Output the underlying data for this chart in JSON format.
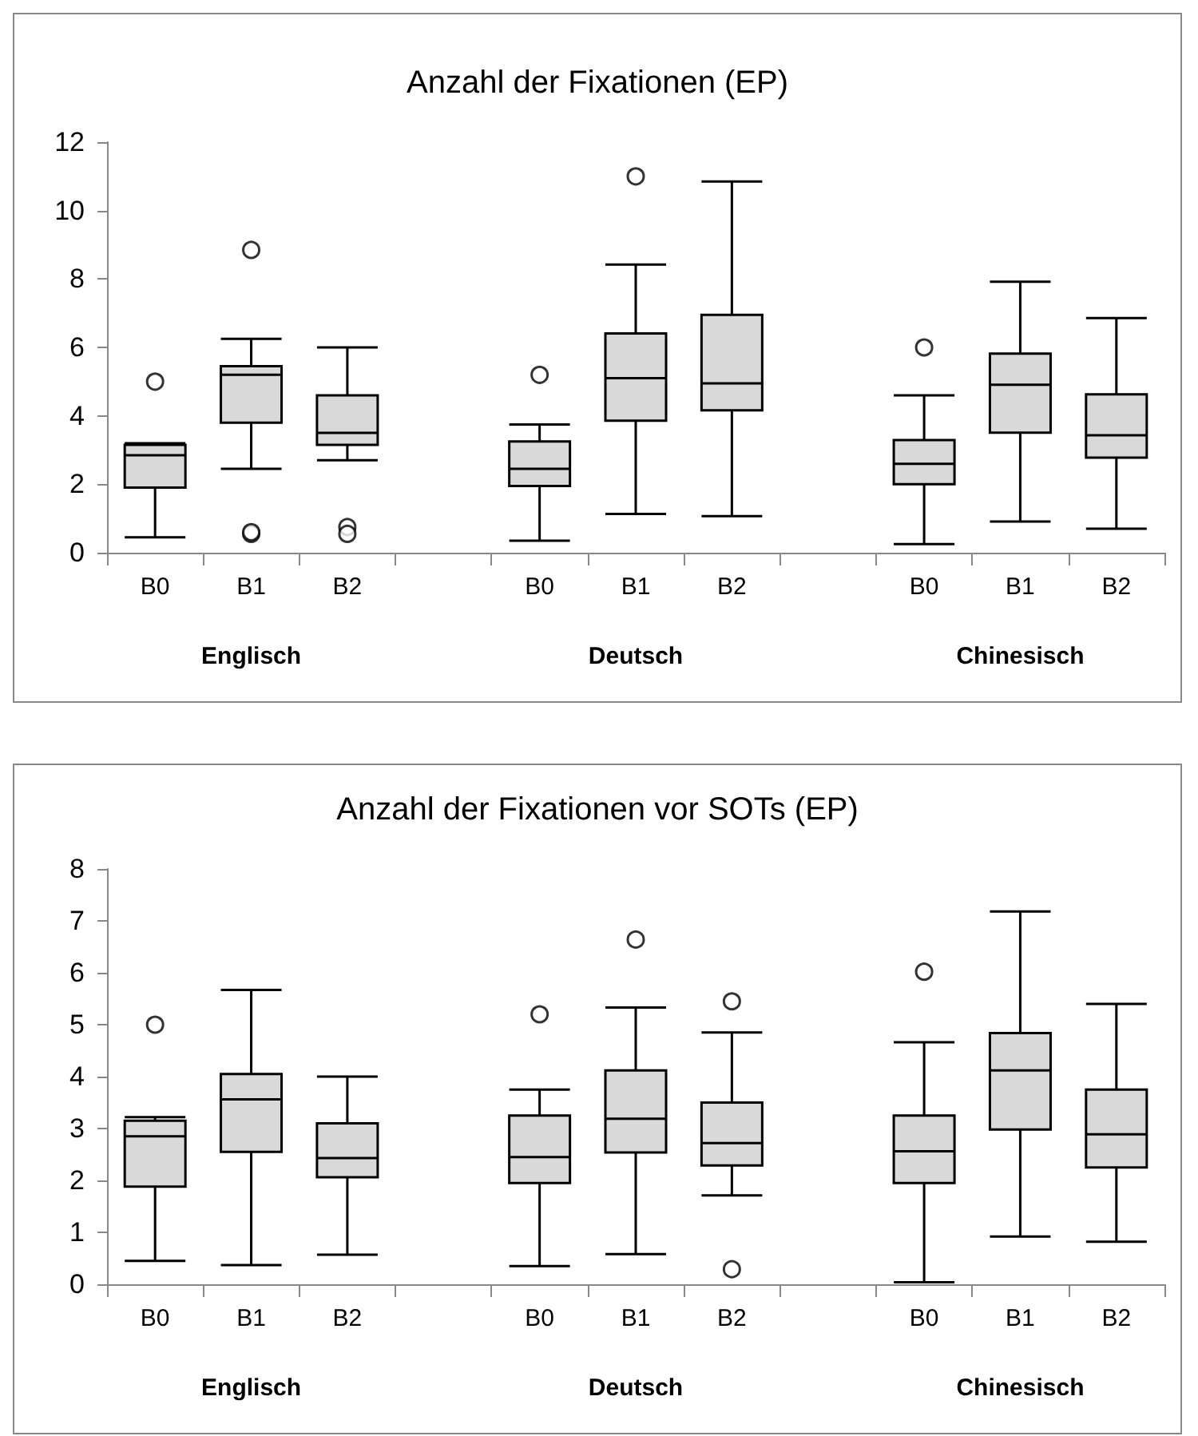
{
  "chart_data": [
    {
      "type": "box",
      "title": "Anzahl der Fixationen (EP)",
      "categories": [
        "B0",
        "B1",
        "B2",
        null,
        "B0",
        "B1",
        "B2",
        null,
        "B0",
        "B1",
        "B2"
      ],
      "annotations": [
        "Englisch",
        "Deutsch",
        "Chinesisch"
      ],
      "ylim": [
        0,
        12
      ],
      "yticks": [
        0,
        2,
        4,
        6,
        8,
        10,
        12
      ],
      "grid": false,
      "series": [
        {
          "color": "#d9d9d9",
          "boxes": [
            {
              "low": 0.45,
              "q1": 1.9,
              "median": 2.85,
              "q3": 3.15,
              "high": 3.2,
              "outliers": [
                5
              ]
            },
            {
              "low": 2.45,
              "q1": 3.8,
              "median": 5.2,
              "q3": 5.45,
              "high": 6.25,
              "outliers": [
                8.85,
                0.55,
                0.6
              ]
            },
            {
              "low": 2.7,
              "q1": 3.15,
              "median": 3.5,
              "q3": 4.6,
              "high": 6.0,
              "outliers": [
                0.75,
                0.55
              ]
            },
            null,
            {
              "low": 0.35,
              "q1": 1.95,
              "median": 2.45,
              "q3": 3.25,
              "high": 3.75,
              "outliers": [
                5.2
              ]
            },
            {
              "low": 1.13,
              "q1": 3.86,
              "median": 5.1,
              "q3": 6.41,
              "high": 8.42,
              "outliers": [
                11.0
              ]
            },
            {
              "low": 1.07,
              "q1": 4.16,
              "median": 4.95,
              "q3": 6.95,
              "high": 10.85
            },
            null,
            {
              "low": 0.25,
              "q1": 2.0,
              "median": 2.6,
              "q3": 3.29,
              "high": 4.6,
              "outliers": [
                6.0
              ]
            },
            {
              "low": 0.91,
              "q1": 3.51,
              "median": 4.91,
              "q3": 5.82,
              "high": 7.92
            },
            {
              "low": 0.7,
              "q1": 2.78,
              "median": 3.43,
              "q3": 4.63,
              "high": 6.86
            }
          ]
        }
      ]
    },
    {
      "type": "box",
      "title": "Anzahl der Fixationen vor SOTs (EP)",
      "categories": [
        "B0",
        "B1",
        "B2",
        null,
        "B0",
        "B1",
        "B2",
        null,
        "B0",
        "B1",
        "B2"
      ],
      "annotations": [
        "Englisch",
        "Deutsch",
        "Chinesisch"
      ],
      "ylim": [
        0,
        8
      ],
      "yticks": [
        0,
        1,
        2,
        3,
        4,
        5,
        6,
        7,
        8
      ],
      "grid": false,
      "series": [
        {
          "color": "#d9d9d9",
          "boxes": [
            {
              "low": 0.45,
              "q1": 1.88,
              "median": 2.85,
              "q3": 3.15,
              "high": 3.22,
              "outliers": [
                5
              ]
            },
            {
              "low": 0.37,
              "q1": 2.55,
              "median": 3.56,
              "q3": 4.05,
              "high": 5.67
            },
            {
              "low": 0.57,
              "q1": 2.06,
              "median": 2.43,
              "q3": 3.1,
              "high": 4.0
            },
            null,
            {
              "low": 0.35,
              "q1": 1.95,
              "median": 2.45,
              "q3": 3.25,
              "high": 3.75,
              "outliers": [
                5.2
              ]
            },
            {
              "low": 0.58,
              "q1": 2.54,
              "median": 3.19,
              "q3": 4.12,
              "high": 5.33,
              "outliers": [
                6.64
              ]
            },
            {
              "low": 1.71,
              "q1": 2.29,
              "median": 2.72,
              "q3": 3.5,
              "high": 4.85,
              "outliers": [
                5.45,
                0.29
              ]
            },
            null,
            {
              "low": 0.04,
              "q1": 1.95,
              "median": 2.56,
              "q3": 3.25,
              "high": 4.66,
              "outliers": [
                6.02
              ]
            },
            {
              "low": 0.92,
              "q1": 2.98,
              "median": 4.12,
              "q3": 4.84,
              "high": 7.18
            },
            {
              "low": 0.82,
              "q1": 2.25,
              "median": 2.89,
              "q3": 3.75,
              "high": 5.4
            }
          ]
        }
      ]
    }
  ]
}
